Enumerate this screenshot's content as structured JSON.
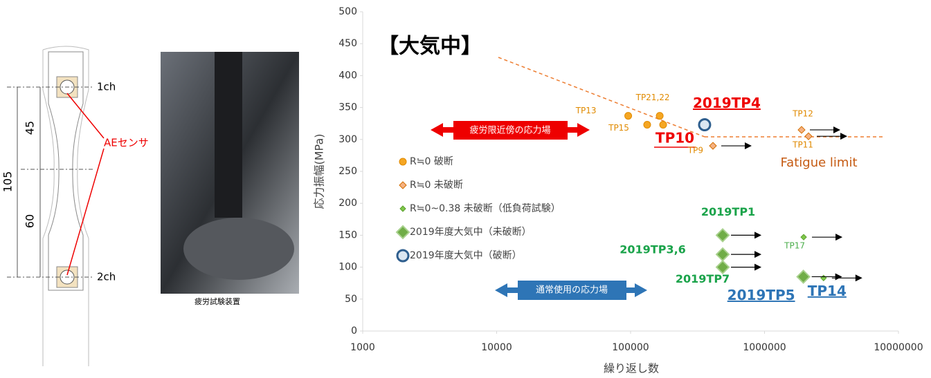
{
  "diagram": {
    "channel_top": "1ch",
    "channel_bottom": "2ch",
    "sensor": "AEセンサ",
    "dim_total": "105",
    "dim_upper": "45",
    "dim_lower": "60",
    "photo_caption": "疲労試験装置"
  },
  "chart_data": {
    "type": "scatter",
    "title": "【大気中】",
    "x_label": "繰り返し数",
    "y_label": "応力振幅(MPa)",
    "xlim": [
      1000,
      10000000
    ],
    "xticks": [
      1000,
      10000,
      100000,
      1000000,
      10000000
    ],
    "xscale": "log",
    "ylim": [
      0,
      500
    ],
    "yticks": [
      0,
      50,
      100,
      150,
      200,
      250,
      300,
      350,
      400,
      450,
      500
    ],
    "series": [
      {
        "name": "R≒0 破断",
        "color": "#f5a623",
        "marker": "circle",
        "x": [
          96000,
          133000,
          165000,
          175000
        ],
        "values": [
          337,
          323,
          337,
          323
        ],
        "labels": [
          "TP13",
          "TP15",
          "TP21,22",
          null
        ]
      },
      {
        "name": "R≒0 未破断",
        "color": "#f4b183",
        "marker": "diamond",
        "arrows": true,
        "x": [
          412000,
          1890000,
          2130000
        ],
        "values": [
          290,
          315,
          305
        ],
        "labels": [
          "TP9",
          "TP12",
          "TP11"
        ]
      },
      {
        "name": "R≒0~0.38 未破断（低負荷試験）",
        "color": "#7fc64b",
        "marker": "diamond",
        "arrows": true,
        "x": [
          1960000,
          2760000
        ],
        "values": [
          147,
          83
        ],
        "labels": [
          "TP17",
          "TP14"
        ]
      },
      {
        "name": "2019年度大気中（未破断）",
        "color": "#70ad47",
        "marker": "diamond",
        "arrows": true,
        "x": [
          487000,
          487000,
          487000,
          1950000
        ],
        "values": [
          150,
          120,
          100,
          85
        ],
        "labels": [
          "2019TP1",
          "2019TP3,6",
          "2019TP7",
          "2019TP5"
        ]
      },
      {
        "name": "2019年度大気中（破断）",
        "color": "#2e5e8e",
        "marker": "ring",
        "x": [
          357000
        ],
        "values": [
          323
        ],
        "labels": [
          "2019TP4"
        ]
      }
    ],
    "annotations": {
      "fatigue_zone": "疲労限近傍の応力場",
      "normal_zone": "通常使用の応力場",
      "fatigue_limit": "Fatigue limit",
      "tp10": "TP10"
    }
  }
}
